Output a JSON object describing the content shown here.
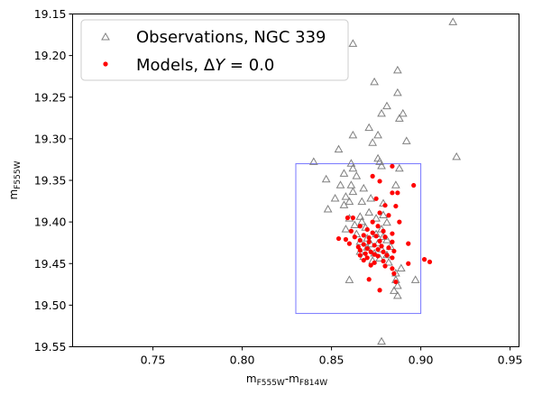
{
  "chart_data": {
    "type": "scatter",
    "xlabel": {
      "base": "m",
      "sub1": "F555W",
      "mid": "-m",
      "sub2": "F814W"
    },
    "ylabel": {
      "base": "m",
      "sub": "F555W"
    },
    "xlim": [
      0.705,
      0.955
    ],
    "ylim": [
      19.55,
      19.15
    ],
    "x_ticks": [
      0.75,
      0.8,
      0.85,
      0.9,
      0.95
    ],
    "x_tick_labels": [
      "0.75",
      "0.80",
      "0.85",
      "0.90",
      "0.95"
    ],
    "y_ticks": [
      19.15,
      19.2,
      19.25,
      19.3,
      19.35,
      19.4,
      19.45,
      19.5,
      19.55
    ],
    "y_tick_labels": [
      "19.15",
      "19.20",
      "19.25",
      "19.30",
      "19.35",
      "19.40",
      "19.45",
      "19.50",
      "19.55"
    ],
    "legend_position": "top-left",
    "box": {
      "x0": 0.83,
      "x1": 0.9,
      "y0": 19.33,
      "y1": 19.51,
      "color": "#7777ff"
    },
    "series": [
      {
        "name": "Observations, NGC 339",
        "marker": "triangle-open",
        "color": "#808080",
        "points": [
          [
            0.918,
            19.16
          ],
          [
            0.862,
            19.186
          ],
          [
            0.887,
            19.218
          ],
          [
            0.874,
            19.232
          ],
          [
            0.887,
            19.245
          ],
          [
            0.881,
            19.261
          ],
          [
            0.878,
            19.27
          ],
          [
            0.89,
            19.27
          ],
          [
            0.888,
            19.276
          ],
          [
            0.871,
            19.287
          ],
          [
            0.862,
            19.296
          ],
          [
            0.876,
            19.296
          ],
          [
            0.873,
            19.305
          ],
          [
            0.892,
            19.303
          ],
          [
            0.854,
            19.313
          ],
          [
            0.876,
            19.324
          ],
          [
            0.877,
            19.328
          ],
          [
            0.92,
            19.322
          ],
          [
            0.84,
            19.328
          ],
          [
            0.861,
            19.33
          ],
          [
            0.862,
            19.336
          ],
          [
            0.878,
            19.333
          ],
          [
            0.888,
            19.336
          ],
          [
            0.857,
            19.342
          ],
          [
            0.864,
            19.345
          ],
          [
            0.847,
            19.349
          ],
          [
            0.855,
            19.356
          ],
          [
            0.861,
            19.356
          ],
          [
            0.886,
            19.356
          ],
          [
            0.868,
            19.36
          ],
          [
            0.862,
            19.364
          ],
          [
            0.852,
            19.372
          ],
          [
            0.858,
            19.37
          ],
          [
            0.872,
            19.372
          ],
          [
            0.867,
            19.376
          ],
          [
            0.86,
            19.376
          ],
          [
            0.879,
            19.378
          ],
          [
            0.857,
            19.38
          ],
          [
            0.848,
            19.385
          ],
          [
            0.871,
            19.389
          ],
          [
            0.879,
            19.392
          ],
          [
            0.866,
            19.394
          ],
          [
            0.875,
            19.396
          ],
          [
            0.86,
            19.396
          ],
          [
            0.867,
            19.4
          ],
          [
            0.881,
            19.401
          ],
          [
            0.863,
            19.404
          ],
          [
            0.869,
            19.407
          ],
          [
            0.858,
            19.409
          ],
          [
            0.878,
            19.409
          ],
          [
            0.864,
            19.415
          ],
          [
            0.875,
            19.415
          ],
          [
            0.879,
            19.418
          ],
          [
            0.87,
            19.42
          ],
          [
            0.881,
            19.422
          ],
          [
            0.866,
            19.424
          ],
          [
            0.876,
            19.426
          ],
          [
            0.872,
            19.427
          ],
          [
            0.883,
            19.43
          ],
          [
            0.87,
            19.431
          ],
          [
            0.878,
            19.433
          ],
          [
            0.866,
            19.436
          ],
          [
            0.874,
            19.438
          ],
          [
            0.881,
            19.44
          ],
          [
            0.868,
            19.442
          ],
          [
            0.877,
            19.444
          ],
          [
            0.873,
            19.447
          ],
          [
            0.882,
            19.449
          ],
          [
            0.889,
            19.456
          ],
          [
            0.886,
            19.462
          ],
          [
            0.86,
            19.47
          ],
          [
            0.886,
            19.47
          ],
          [
            0.897,
            19.47
          ],
          [
            0.887,
            19.477
          ],
          [
            0.885,
            19.483
          ],
          [
            0.887,
            19.489
          ],
          [
            0.878,
            19.544
          ]
        ]
      },
      {
        "name": "Models, ΔY = 0.0",
        "name_parts": {
          "base": "Models, ",
          "symbol": "Δ",
          "var": "Y",
          "rest": " = 0.0"
        },
        "marker": "dot",
        "color": "#ff0000",
        "points": [
          [
            0.884,
            19.333
          ],
          [
            0.873,
            19.345
          ],
          [
            0.896,
            19.356
          ],
          [
            0.877,
            19.351
          ],
          [
            0.884,
            19.365
          ],
          [
            0.887,
            19.365
          ],
          [
            0.875,
            19.372
          ],
          [
            0.88,
            19.38
          ],
          [
            0.886,
            19.381
          ],
          [
            0.877,
            19.389
          ],
          [
            0.882,
            19.392
          ],
          [
            0.859,
            19.395
          ],
          [
            0.862,
            19.395
          ],
          [
            0.873,
            19.4
          ],
          [
            0.888,
            19.4
          ],
          [
            0.866,
            19.405
          ],
          [
            0.876,
            19.405
          ],
          [
            0.87,
            19.409
          ],
          [
            0.861,
            19.411
          ],
          [
            0.879,
            19.411
          ],
          [
            0.873,
            19.413
          ],
          [
            0.884,
            19.414
          ],
          [
            0.868,
            19.416
          ],
          [
            0.875,
            19.417
          ],
          [
            0.863,
            19.418
          ],
          [
            0.871,
            19.419
          ],
          [
            0.88,
            19.418
          ],
          [
            0.854,
            19.42
          ],
          [
            0.858,
            19.421
          ],
          [
            0.866,
            19.422
          ],
          [
            0.877,
            19.423
          ],
          [
            0.871,
            19.424
          ],
          [
            0.884,
            19.424
          ],
          [
            0.893,
            19.426
          ],
          [
            0.86,
            19.426
          ],
          [
            0.868,
            19.427
          ],
          [
            0.874,
            19.428
          ],
          [
            0.878,
            19.429
          ],
          [
            0.865,
            19.43
          ],
          [
            0.882,
            19.431
          ],
          [
            0.87,
            19.432
          ],
          [
            0.876,
            19.433
          ],
          [
            0.866,
            19.434
          ],
          [
            0.885,
            19.435
          ],
          [
            0.872,
            19.436
          ],
          [
            0.879,
            19.436
          ],
          [
            0.869,
            19.438
          ],
          [
            0.874,
            19.439
          ],
          [
            0.881,
            19.44
          ],
          [
            0.866,
            19.44
          ],
          [
            0.876,
            19.441
          ],
          [
            0.87,
            19.443
          ],
          [
            0.884,
            19.443
          ],
          [
            0.902,
            19.445
          ],
          [
            0.905,
            19.448
          ],
          [
            0.868,
            19.446
          ],
          [
            0.879,
            19.447
          ],
          [
            0.874,
            19.449
          ],
          [
            0.893,
            19.45
          ],
          [
            0.872,
            19.452
          ],
          [
            0.88,
            19.453
          ],
          [
            0.884,
            19.456
          ],
          [
            0.885,
            19.462
          ],
          [
            0.871,
            19.469
          ],
          [
            0.886,
            19.472
          ],
          [
            0.877,
            19.482
          ]
        ]
      }
    ]
  }
}
